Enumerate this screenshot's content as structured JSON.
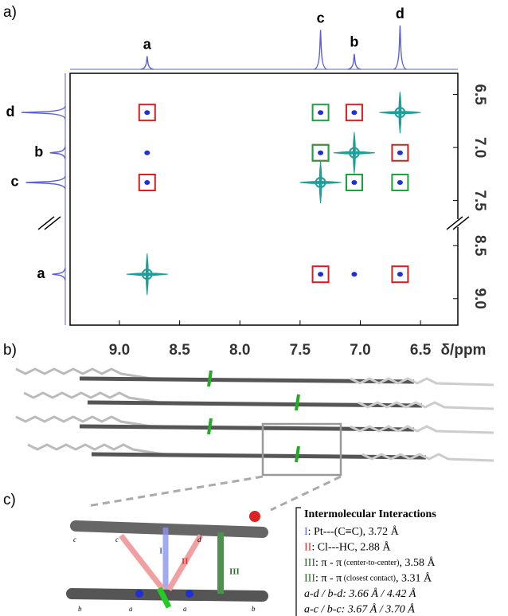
{
  "panel_labels": [
    "a)",
    "b)",
    "c)"
  ],
  "chart_data": {
    "type": "scatter",
    "xlabel": "δ/ppm",
    "xlim": [
      9.41,
      6.19
    ],
    "xticks": [
      {
        "value": 9,
        "label": "9.0"
      },
      {
        "value": 8.5,
        "label": "8.5"
      },
      {
        "value": 8,
        "label": "8.0"
      },
      {
        "value": 7.5,
        "label": "7.5"
      },
      {
        "value": 7,
        "label": "7.0"
      },
      {
        "value": 6.5,
        "label": "6.5"
      }
    ],
    "ylim": [
      6.3,
      9.25
    ],
    "ybreak": [
      7.6,
      8.4
    ],
    "yticks": [
      {
        "value": 6.5,
        "label": "6.5"
      },
      {
        "value": 7,
        "label": "7.0"
      },
      {
        "value": 7.5,
        "label": "7.5"
      },
      {
        "value": 8.5,
        "label": "8.5"
      },
      {
        "value": 9,
        "label": "9.0"
      }
    ],
    "peak_labels": [
      "a",
      "b",
      "c",
      "d"
    ],
    "peak_shifts": [
      8.77,
      7.05,
      7.33,
      6.67
    ],
    "peak_heights": [
      0.3,
      0.35,
      0.9,
      1.0
    ],
    "projection_color": "#5a5fd8",
    "series": [
      {
        "marker": "star",
        "color": "#1f9e9a",
        "x": [
          6.67,
          7.05,
          7.33,
          8.77
        ],
        "values": [
          6.67,
          7.05,
          7.33,
          8.77
        ]
      },
      {
        "marker": "dot",
        "color": "#1e2fd6",
        "x": [
          8.77,
          8.77,
          8.77,
          7.33,
          7.05,
          7.33,
          7.05,
          6.67,
          6.67,
          7.33,
          7.05,
          6.67
        ],
        "values": [
          6.67,
          7.05,
          7.33,
          6.67,
          6.67,
          7.05,
          7.33,
          7.05,
          7.33,
          8.77,
          8.77,
          8.77
        ]
      },
      {
        "marker": "box",
        "color": "#d62020",
        "x": [
          8.77,
          8.77,
          7.05,
          7.33,
          7.05,
          6.67,
          7.33,
          6.67
        ],
        "values": [
          6.67,
          7.33,
          6.67,
          7.05,
          7.33,
          7.05,
          8.77,
          8.77
        ]
      },
      {
        "marker": "box",
        "color": "#1fa040",
        "x": [
          7.33,
          7.33,
          7.05,
          6.67
        ],
        "values": [
          6.67,
          7.05,
          7.33,
          7.33
        ]
      }
    ]
  },
  "panel_c": {
    "image_labels": {
      "numerals": [
        "I",
        "II",
        "III"
      ],
      "atoms": [
        "c",
        "c",
        "d",
        "b",
        "a",
        "a",
        "b"
      ]
    },
    "legend": {
      "title": "Intermolecular Interactions",
      "items": [
        {
          "numeral": "I",
          "text": ": Pt---(C≡C), 3.72 Å"
        },
        {
          "numeral": "II",
          "text": ": Cl---HC, 2.88 Å"
        },
        {
          "numeral": "III",
          "text": ": π - π",
          "small": " (center-to-center)",
          "tail": ", 3.58 Å"
        },
        {
          "numeral": "III",
          "text": ": π - π",
          "small": " (closest contact)",
          "tail": ", 3.31 Å"
        },
        {
          "text": "a-d / b-d: 3.66 Å / 4.42 Å"
        },
        {
          "text": "a-c / b-c: 3.67 Å / 3.70 Å"
        }
      ]
    }
  }
}
